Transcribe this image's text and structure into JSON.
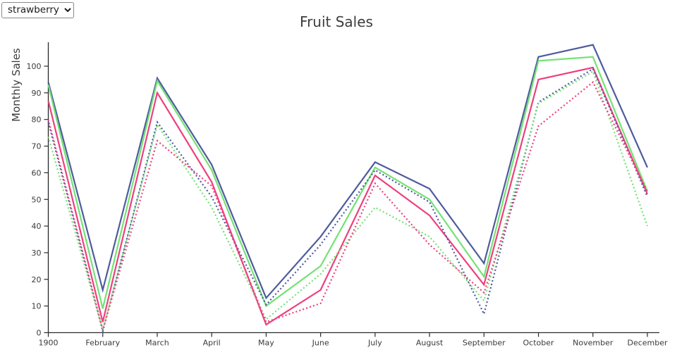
{
  "controls": {
    "fruit_select": {
      "value": "strawberry"
    }
  },
  "chart": {
    "title": "Fruit Sales",
    "ylabel": "Monthly Sales"
  },
  "chart_data": {
    "type": "line",
    "title": "Fruit Sales",
    "xlabel": "",
    "ylabel": "Monthly Sales",
    "x_tick_labels": [
      "1900",
      "February",
      "March",
      "April",
      "May",
      "June",
      "July",
      "August",
      "September",
      "October",
      "November",
      "December"
    ],
    "y_ticks": [
      0,
      10,
      20,
      30,
      40,
      50,
      60,
      70,
      80,
      90,
      100
    ],
    "ylim": [
      0,
      110
    ],
    "grid": false,
    "legend_position": "none",
    "colors": {
      "navy": "#4e5b9c",
      "green": "#74e274",
      "pink": "#ee3f7d"
    },
    "series": [
      {
        "name": "navy-solid",
        "color": "#4e5b9c",
        "style": "solid",
        "values": [
          94,
          16,
          95.5,
          63,
          13,
          36,
          64,
          54,
          26,
          103.5,
          108,
          62
        ]
      },
      {
        "name": "green-solid",
        "color": "#74e274",
        "style": "solid",
        "values": [
          93,
          9,
          94.5,
          61,
          10,
          25,
          62,
          50,
          21,
          102,
          103.5,
          53
        ]
      },
      {
        "name": "pink-solid",
        "color": "#ee3f7d",
        "style": "solid",
        "values": [
          87,
          4,
          90,
          56.5,
          3,
          16,
          59,
          44,
          18,
          95,
          99.5,
          52
        ]
      },
      {
        "name": "navy-dotted",
        "color": "#4e5b9c",
        "style": "dotted",
        "values": [
          79,
          0.5,
          79,
          51,
          10.5,
          33,
          61,
          49,
          7,
          86.5,
          99,
          51
        ]
      },
      {
        "name": "green-dotted",
        "color": "#74e274",
        "style": "dotted",
        "values": [
          73.5,
          1,
          78,
          47,
          5,
          22,
          47,
          36,
          12,
          86,
          98,
          40
        ]
      },
      {
        "name": "pink-dotted",
        "color": "#ee3f7d",
        "style": "dotted",
        "values": [
          80,
          1,
          72,
          55,
          4,
          11,
          56,
          33,
          15,
          77.5,
          94,
          53
        ]
      }
    ]
  }
}
